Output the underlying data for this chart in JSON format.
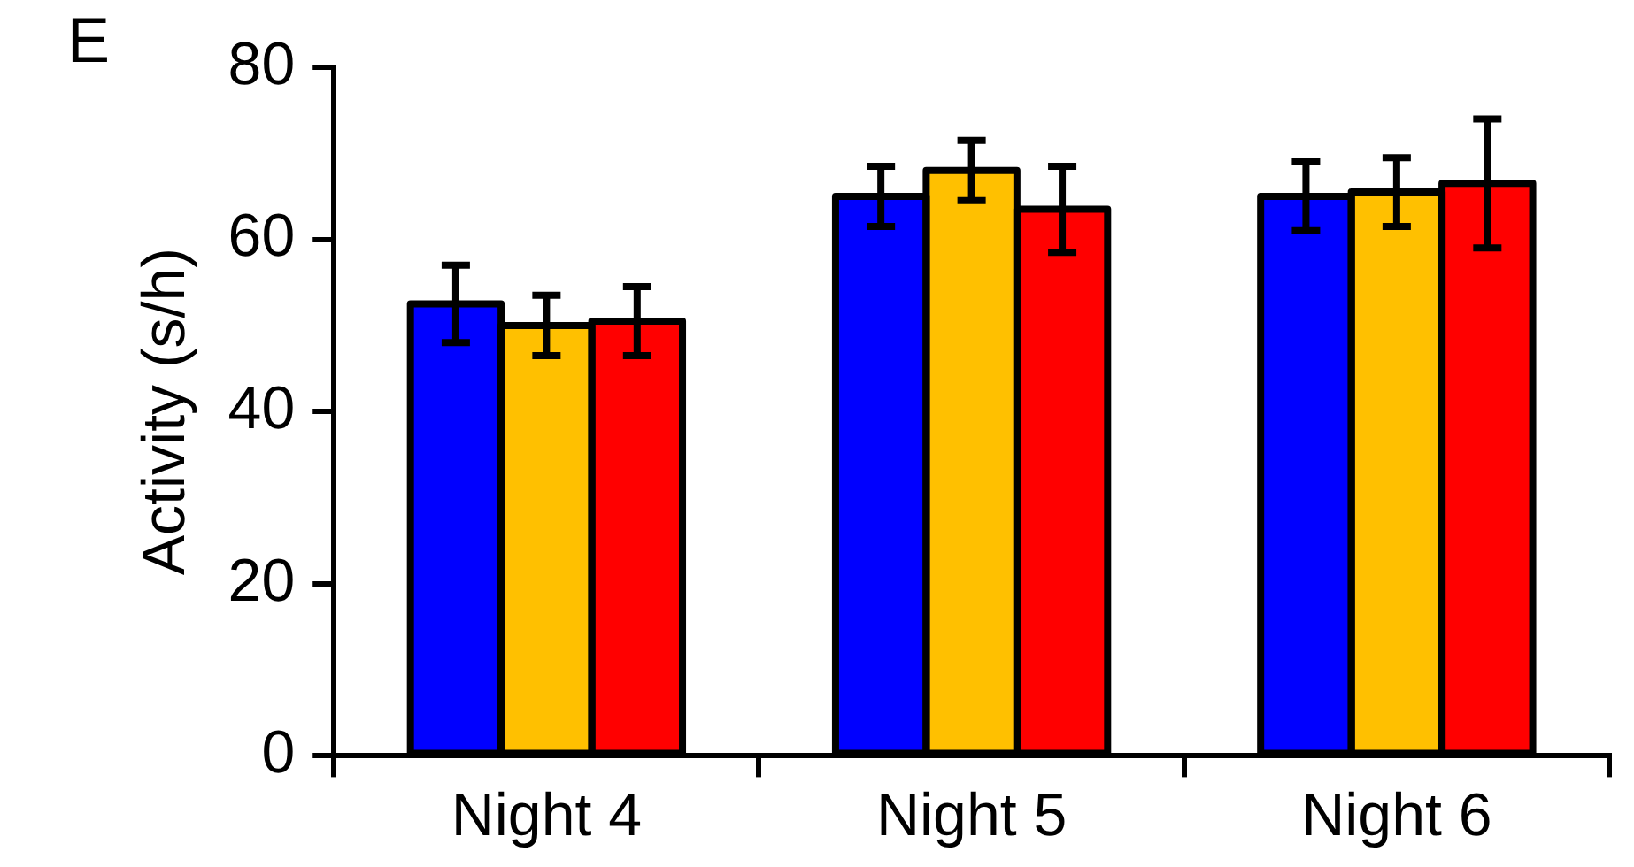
{
  "chart_data": {
    "type": "bar",
    "title": "E",
    "ylabel": "Activity (s/h)",
    "categories": [
      "Night 4",
      "Night 5",
      "Night 6"
    ],
    "series": [
      {
        "color": "#0000ff",
        "values": [
          52.5,
          65,
          65
        ],
        "errors": [
          4.5,
          3.5,
          4
        ]
      },
      {
        "color": "#ffc000",
        "values": [
          50,
          68,
          65.5
        ],
        "errors": [
          3.5,
          3.5,
          4
        ]
      },
      {
        "color": "#ff0000",
        "values": [
          50.5,
          63.5,
          66.5
        ],
        "errors": [
          4,
          5,
          7.5
        ]
      }
    ],
    "ylim": [
      0,
      80
    ],
    "yticks": [
      0,
      20,
      40,
      60,
      80
    ],
    "grid": false,
    "legend": false
  }
}
